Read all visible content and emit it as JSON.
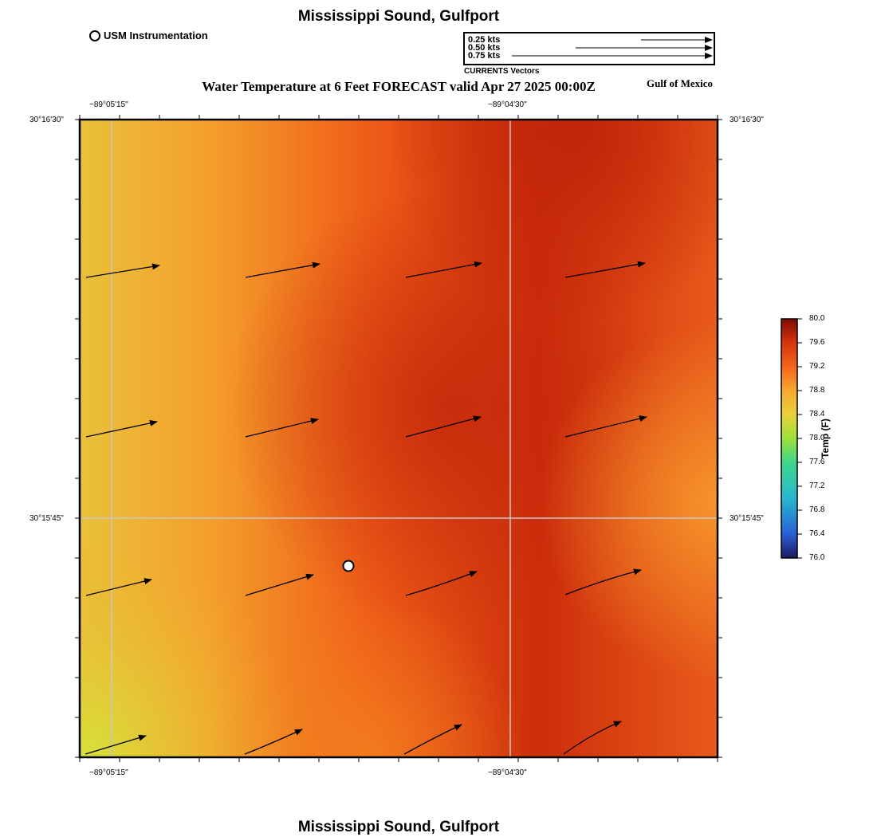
{
  "title": "Mississippi Sound, Gulfport",
  "footer_title": "Mississippi Sound, Gulfport",
  "subtitle": "Water Temperature at 6 Feet FORECAST valid Apr 27 2025 00:00Z",
  "region_label": "Gulf of Mexico",
  "station_legend": {
    "label": "USM Instrumentation",
    "icon": "open-circle"
  },
  "vector_legend": {
    "caption": "CURRENTS Vectors",
    "rows": [
      {
        "label": "0.25 kts"
      },
      {
        "label": "0.50 kts"
      },
      {
        "label": "0.75 kts"
      }
    ]
  },
  "axes": {
    "top_ticks": [
      "−89°05'15\"",
      "−89°04'30\""
    ],
    "bottom_ticks": [
      "−89°05'15\"",
      "−89°04'30\""
    ],
    "left_ticks": [
      "30°16'30\"",
      "30°15'45\""
    ],
    "right_ticks": [
      "30°16'30\"",
      "30°15'45\""
    ]
  },
  "colorbar": {
    "title": "Temp (F)",
    "min": 76.0,
    "max": 80.0,
    "ticks": [
      "80.0",
      "79.6",
      "79.2",
      "78.8",
      "78.4",
      "78.0",
      "77.6",
      "77.2",
      "76.8",
      "76.4",
      "76.0"
    ],
    "colors": [
      "#1e1b5c",
      "#2a5fd8",
      "#27b8cf",
      "#3fd68a",
      "#9ee03a",
      "#e8d13a",
      "#f7a82e",
      "#f4641b",
      "#d6350c",
      "#b51a06",
      "#7d0b03"
    ]
  },
  "field_colors": {
    "cool": "#d7e03a",
    "mid": "#f3a22c",
    "warm": "#f06018",
    "hot": "#c3260a"
  },
  "station": {
    "name": "USM Instrumentation",
    "lon_norm": 0.42,
    "lat_norm": 0.3
  }
}
